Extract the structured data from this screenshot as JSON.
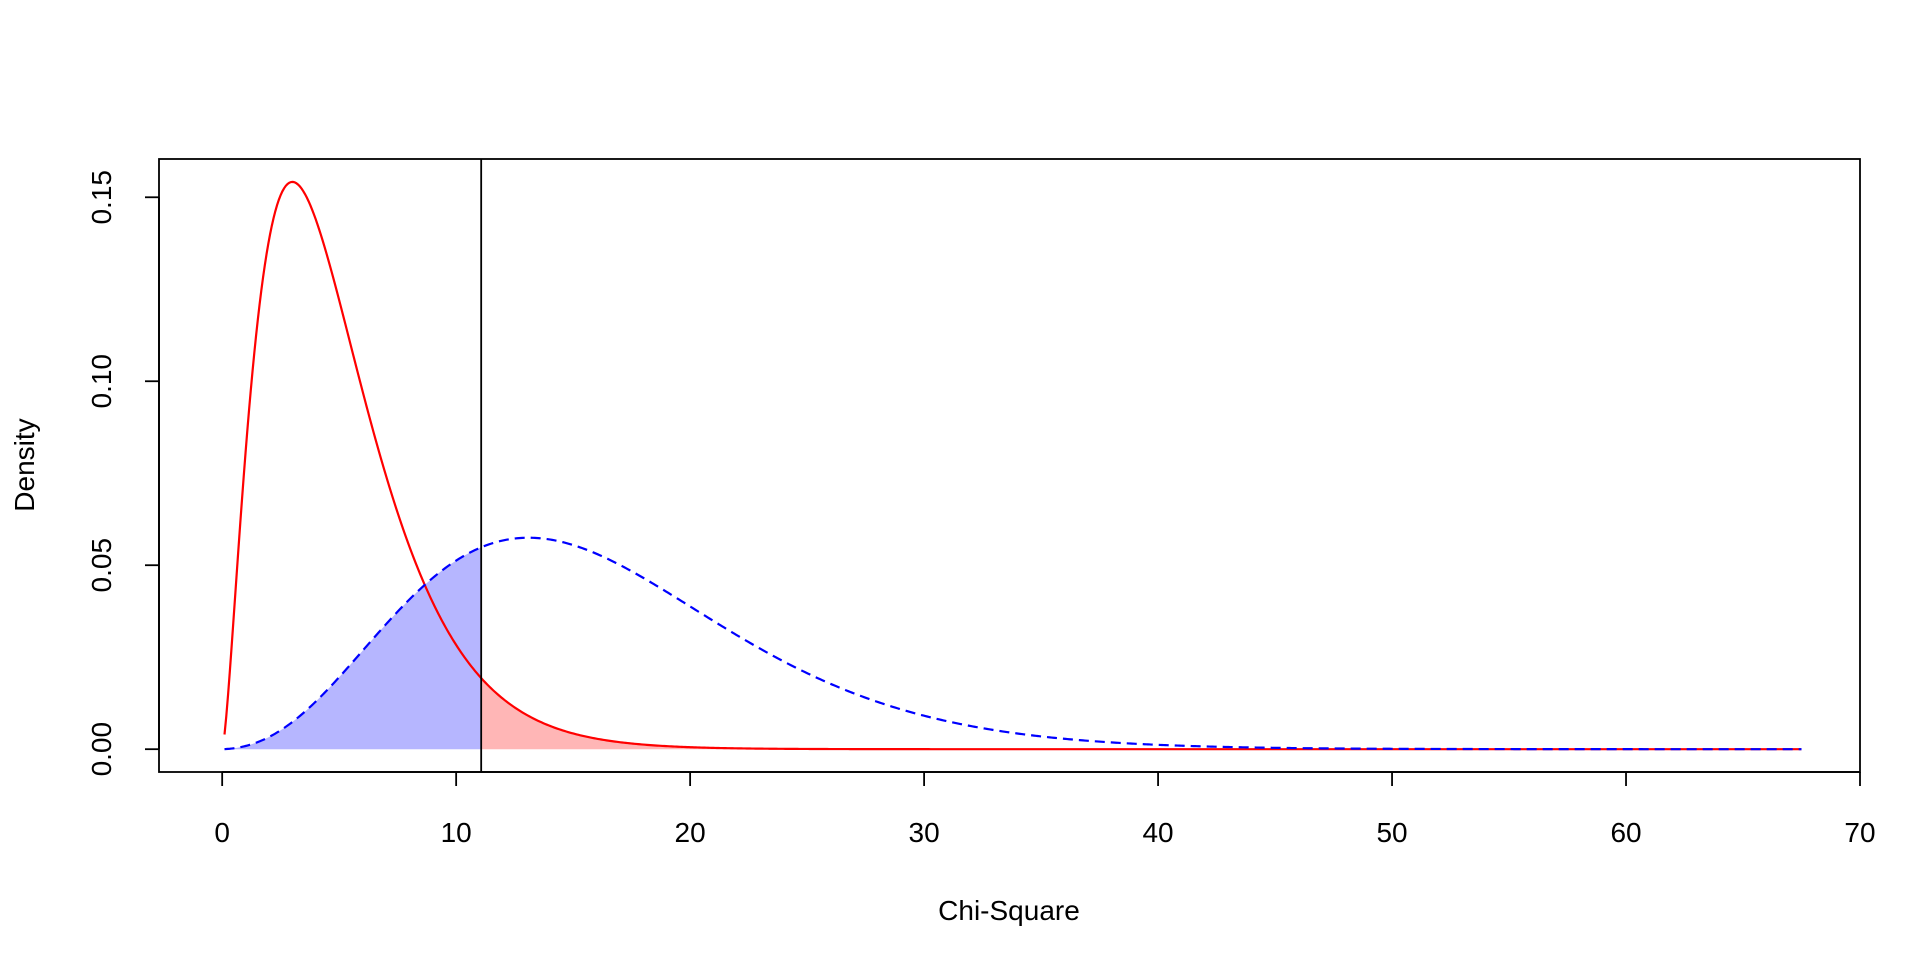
{
  "chart_data": {
    "type": "area",
    "title": "",
    "xlabel": "Chi-Square",
    "ylabel": "Density",
    "xlim": [
      -2.7,
      70
    ],
    "ylim": [
      -0.0062,
      0.1604
    ],
    "x_ticks": [
      0,
      10,
      20,
      30,
      40,
      50,
      60,
      70
    ],
    "x_tick_labels": [
      "0",
      "10",
      "20",
      "30",
      "40",
      "50",
      "60",
      "70"
    ],
    "y_ticks": [
      0.0,
      0.05,
      0.1,
      0.15
    ],
    "y_tick_labels": [
      "0.00",
      "0.05",
      "0.10",
      "0.15"
    ],
    "grid": false,
    "legend": "none",
    "critical_value": 11.07,
    "x_range": [
      0.1,
      67.5
    ],
    "series": [
      {
        "df": 5,
        "ncp": 0,
        "color": "#ff0000",
        "line_style": "solid",
        "fill_color": "#ffb6b6",
        "fill_region": "x >= 11.07"
      },
      {
        "df": 5,
        "ncp": 11,
        "color": "#0000ff",
        "line_style": "dashed",
        "fill_color": "#b6b6ff",
        "fill_region": "x <= 11.07"
      }
    ]
  }
}
